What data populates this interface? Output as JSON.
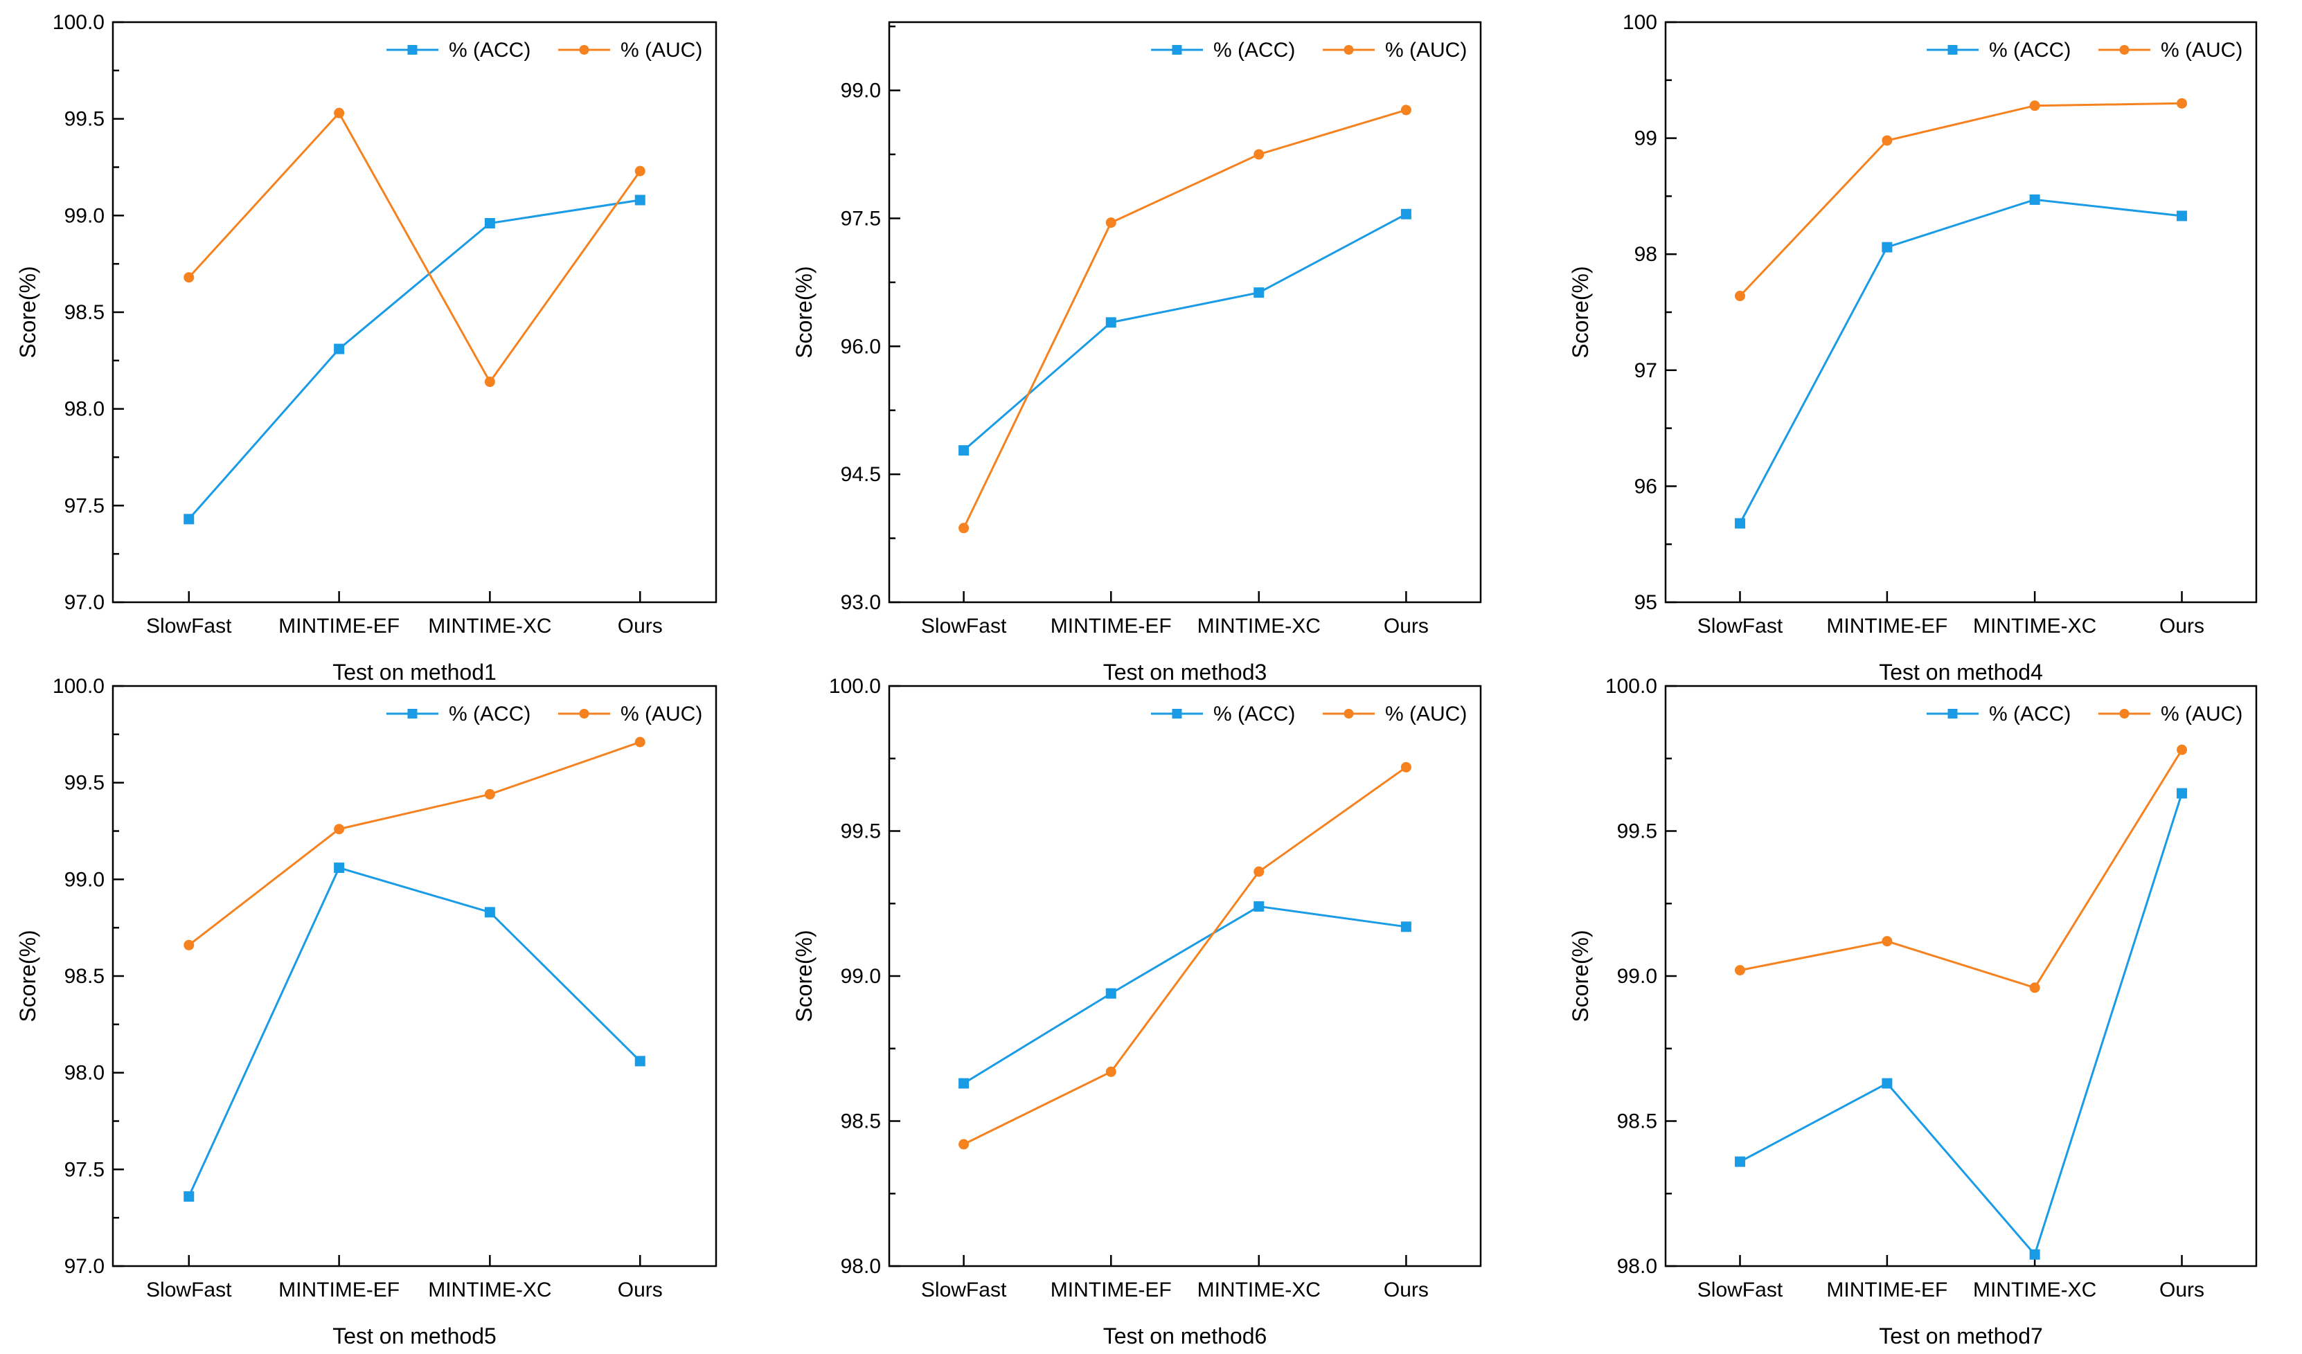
{
  "chart_data": [
    {
      "type": "line",
      "title": "",
      "xlabel": "Test on method1",
      "ylabel": "Score(%)",
      "categories": [
        "SlowFast",
        "MINTIME-EF",
        "MINTIME-XC",
        "Ours"
      ],
      "ylim": [
        97.0,
        100.0
      ],
      "yticks": [
        "97.0",
        "97.5",
        "98.0",
        "98.5",
        "99.0",
        "99.5",
        "100.0"
      ],
      "yminor": true,
      "legend": "top-right",
      "series": [
        {
          "name": "% (ACC)",
          "color": "#1a9be6",
          "marker": "square",
          "values": [
            97.43,
            98.31,
            98.96,
            99.08
          ]
        },
        {
          "name": "% (AUC)",
          "color": "#f5821f",
          "marker": "circle",
          "values": [
            98.68,
            99.53,
            98.14,
            99.23
          ]
        }
      ]
    },
    {
      "type": "line",
      "title": "",
      "xlabel": "Test on method3",
      "ylabel": "Score(%)",
      "categories": [
        "SlowFast",
        "MINTIME-EF",
        "MINTIME-XC",
        "Ours"
      ],
      "ylim": [
        93.0,
        99.8
      ],
      "yticks": [
        "93.0",
        "94.5",
        "96.0",
        "97.5",
        "99.0"
      ],
      "yminor": true,
      "legend": "top-right",
      "series": [
        {
          "name": "% (ACC)",
          "color": "#1a9be6",
          "marker": "square",
          "values": [
            94.78,
            96.28,
            96.63,
            97.55
          ]
        },
        {
          "name": "% (AUC)",
          "color": "#f5821f",
          "marker": "circle",
          "values": [
            93.87,
            97.45,
            98.25,
            98.77
          ]
        }
      ]
    },
    {
      "type": "line",
      "title": "",
      "xlabel": "Test on method4",
      "ylabel": "Score(%)",
      "categories": [
        "SlowFast",
        "MINTIME-EF",
        "MINTIME-XC",
        "Ours"
      ],
      "ylim": [
        95,
        100
      ],
      "yticks": [
        "95",
        "96",
        "97",
        "98",
        "99",
        "100"
      ],
      "yminor": true,
      "legend": "top-right",
      "series": [
        {
          "name": "% (ACC)",
          "color": "#1a9be6",
          "marker": "square",
          "values": [
            95.68,
            98.06,
            98.47,
            98.33
          ]
        },
        {
          "name": "% (AUC)",
          "color": "#f5821f",
          "marker": "circle",
          "values": [
            97.64,
            98.98,
            99.28,
            99.3
          ]
        }
      ]
    },
    {
      "type": "line",
      "title": "",
      "xlabel": "Test on method5",
      "ylabel": "Score(%)",
      "categories": [
        "SlowFast",
        "MINTIME-EF",
        "MINTIME-XC",
        "Ours"
      ],
      "ylim": [
        97.0,
        100.0
      ],
      "yticks": [
        "97.0",
        "97.5",
        "98.0",
        "98.5",
        "99.0",
        "99.5",
        "100.0"
      ],
      "yminor": true,
      "legend": "top-right",
      "series": [
        {
          "name": "% (ACC)",
          "color": "#1a9be6",
          "marker": "square",
          "values": [
            97.36,
            99.06,
            98.83,
            98.06
          ]
        },
        {
          "name": "% (AUC)",
          "color": "#f5821f",
          "marker": "circle",
          "values": [
            98.66,
            99.26,
            99.44,
            99.71
          ]
        }
      ]
    },
    {
      "type": "line",
      "title": "",
      "xlabel": "Test on method6",
      "ylabel": "Score(%)",
      "categories": [
        "SlowFast",
        "MINTIME-EF",
        "MINTIME-XC",
        "Ours"
      ],
      "ylim": [
        98.0,
        100.0
      ],
      "yticks": [
        "98.0",
        "98.5",
        "99.0",
        "99.5",
        "100.0"
      ],
      "yminor": true,
      "legend": "top-right",
      "series": [
        {
          "name": "% (ACC)",
          "color": "#1a9be6",
          "marker": "square",
          "values": [
            98.63,
            98.94,
            99.24,
            99.17
          ]
        },
        {
          "name": "% (AUC)",
          "color": "#f5821f",
          "marker": "circle",
          "values": [
            98.42,
            98.67,
            99.36,
            99.72
          ]
        }
      ]
    },
    {
      "type": "line",
      "title": "",
      "xlabel": "Test on method7",
      "ylabel": "Score(%)",
      "categories": [
        "SlowFast",
        "MINTIME-EF",
        "MINTIME-XC",
        "Ours"
      ],
      "ylim": [
        98.0,
        100.0
      ],
      "yticks": [
        "98.0",
        "98.5",
        "99.0",
        "99.5",
        "100.0"
      ],
      "yminor": true,
      "legend": "top-right",
      "series": [
        {
          "name": "% (ACC)",
          "color": "#1a9be6",
          "marker": "square",
          "values": [
            98.36,
            98.63,
            98.04,
            99.63
          ]
        },
        {
          "name": "% (AUC)",
          "color": "#f5821f",
          "marker": "circle",
          "values": [
            99.02,
            99.12,
            98.96,
            99.78
          ]
        }
      ]
    }
  ]
}
